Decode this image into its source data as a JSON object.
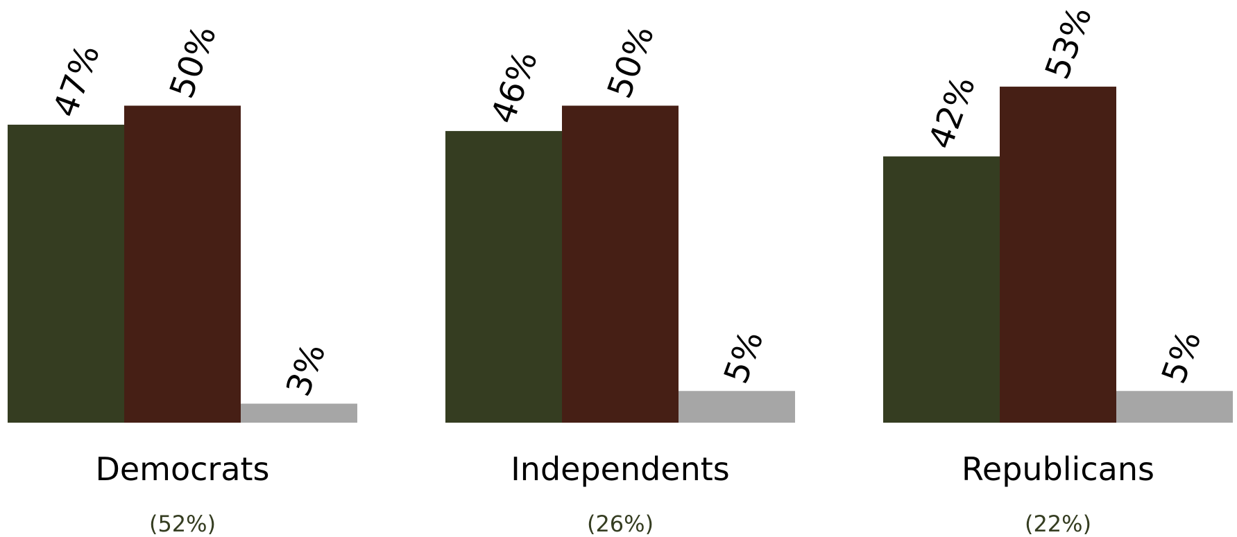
{
  "chart_data": {
    "type": "bar",
    "categories": [
      "Democrats",
      "Independents",
      "Republicans"
    ],
    "category_shares": [
      "(52%)",
      "(26%)",
      "(22%)"
    ],
    "series": [
      {
        "values": [
          47,
          46,
          42
        ],
        "labels": [
          "47%",
          "46%",
          "42%"
        ],
        "color": "#353d21"
      },
      {
        "values": [
          50,
          50,
          53
        ],
        "labels": [
          "50%",
          "50%",
          "53%"
        ],
        "color": "#461f15"
      },
      {
        "values": [
          3,
          5,
          5
        ],
        "labels": [
          "3%",
          "5%",
          "5%"
        ],
        "color": "#a6a6a6"
      }
    ],
    "title": "",
    "xlabel": "",
    "ylabel": "",
    "ylim": [
      0,
      60
    ],
    "grid": false,
    "legend": "none"
  },
  "colors": {
    "share_text": "#353d21"
  }
}
